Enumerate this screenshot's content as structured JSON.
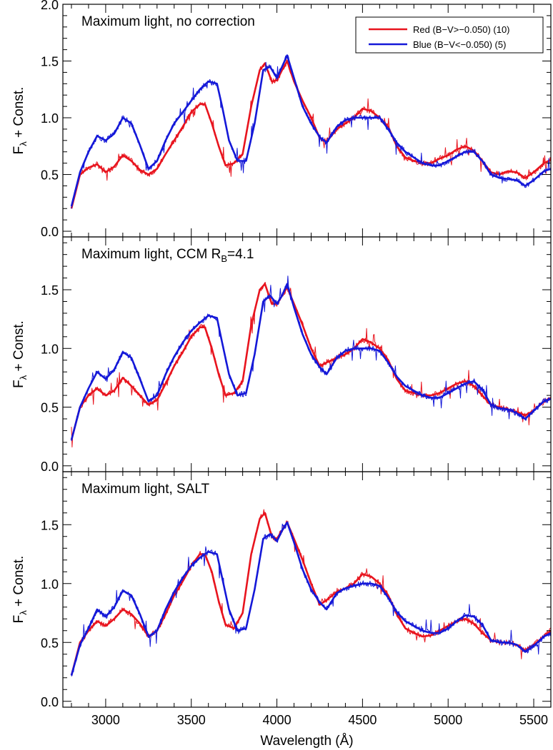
{
  "chart_data": [
    {
      "type": "line",
      "title": "Maximum light, no correction",
      "title_sub": "",
      "title_after": "",
      "ylabel": "Fλ + Const.",
      "ylabel_main": "F",
      "ylabel_sub": "λ",
      "ylabel_rest": " + Const.",
      "xlabel": "",
      "xlim": [
        2750,
        5600
      ],
      "ylim": [
        -0.05,
        2.0
      ],
      "yticks": [
        "0.0",
        "0.5",
        "1.0",
        "1.5",
        "2.0"
      ],
      "ytick_values": [
        0.0,
        0.5,
        1.0,
        1.5,
        2.0
      ],
      "xticks": [],
      "legend": {
        "position": "top-right",
        "entries": [
          {
            "label": "Red (B−V>−0.050) (10)",
            "color": "#e8141e"
          },
          {
            "label": "Blue (B−V<−0.050) (5)",
            "color": "#1418d8"
          }
        ]
      },
      "series": [
        {
          "name": "Red (B−V>−0.050) (10)",
          "color": "#e8141e",
          "x": [
            2800,
            2850,
            2900,
            2950,
            3000,
            3050,
            3100,
            3150,
            3200,
            3250,
            3300,
            3350,
            3400,
            3450,
            3500,
            3550,
            3580,
            3620,
            3660,
            3700,
            3750,
            3800,
            3850,
            3900,
            3930,
            3970,
            4000,
            4030,
            4060,
            4100,
            4150,
            4200,
            4250,
            4290,
            4350,
            4400,
            4450,
            4500,
            4550,
            4600,
            4650,
            4700,
            4750,
            4800,
            4850,
            4900,
            4950,
            5000,
            5050,
            5100,
            5150,
            5200,
            5250,
            5300,
            5350,
            5400,
            5450,
            5500,
            5560,
            5600
          ],
          "y": [
            0.2,
            0.5,
            0.56,
            0.59,
            0.52,
            0.57,
            0.67,
            0.62,
            0.54,
            0.5,
            0.55,
            0.68,
            0.8,
            0.92,
            1.05,
            1.12,
            1.12,
            0.95,
            0.75,
            0.58,
            0.6,
            0.68,
            1.1,
            1.42,
            1.48,
            1.32,
            1.33,
            1.42,
            1.5,
            1.32,
            1.15,
            1.0,
            0.82,
            0.79,
            0.9,
            0.95,
            1.0,
            1.08,
            1.06,
            1.0,
            0.92,
            0.75,
            0.65,
            0.62,
            0.6,
            0.6,
            0.64,
            0.67,
            0.72,
            0.75,
            0.71,
            0.62,
            0.52,
            0.5,
            0.53,
            0.52,
            0.47,
            0.52,
            0.6,
            0.63
          ]
        },
        {
          "name": "Blue (B−V<−0.050) (5)",
          "color": "#1418d8",
          "x": [
            2800,
            2850,
            2900,
            2950,
            3000,
            3050,
            3100,
            3150,
            3200,
            3250,
            3300,
            3350,
            3400,
            3450,
            3500,
            3550,
            3600,
            3650,
            3680,
            3720,
            3770,
            3820,
            3870,
            3920,
            3960,
            4000,
            4030,
            4060,
            4100,
            4150,
            4200,
            4250,
            4290,
            4350,
            4400,
            4450,
            4500,
            4550,
            4600,
            4650,
            4700,
            4750,
            4800,
            4850,
            4900,
            4950,
            5000,
            5050,
            5100,
            5150,
            5200,
            5250,
            5300,
            5350,
            5400,
            5450,
            5500,
            5560,
            5600
          ],
          "y": [
            0.22,
            0.52,
            0.7,
            0.84,
            0.8,
            0.86,
            1.0,
            0.95,
            0.76,
            0.55,
            0.62,
            0.8,
            0.95,
            1.05,
            1.15,
            1.25,
            1.32,
            1.3,
            1.1,
            0.8,
            0.62,
            0.62,
            0.95,
            1.42,
            1.45,
            1.35,
            1.45,
            1.55,
            1.35,
            1.1,
            0.95,
            0.83,
            0.78,
            0.92,
            0.98,
            1.0,
            1.0,
            1.0,
            1.0,
            0.9,
            0.78,
            0.7,
            0.65,
            0.6,
            0.58,
            0.58,
            0.62,
            0.66,
            0.7,
            0.7,
            0.62,
            0.5,
            0.47,
            0.46,
            0.45,
            0.4,
            0.45,
            0.53,
            0.55
          ]
        }
      ]
    },
    {
      "type": "line",
      "title": "Maximum light, CCM R",
      "title_sub": "B",
      "title_after": "=4.1",
      "ylabel": "Fλ + Const.",
      "ylabel_main": "F",
      "ylabel_sub": "λ",
      "ylabel_rest": " + Const.",
      "xlabel": "",
      "xlim": [
        2750,
        5600
      ],
      "ylim": [
        -0.05,
        1.95
      ],
      "yticks": [
        "0.0",
        "0.5",
        "1.0",
        "1.5"
      ],
      "ytick_values": [
        0.0,
        0.5,
        1.0,
        1.5
      ],
      "xticks": [],
      "series": [
        {
          "name": "Red (B−V>−0.050) (10)",
          "color": "#e8141e",
          "x": [
            2800,
            2850,
            2900,
            2950,
            3000,
            3050,
            3100,
            3150,
            3200,
            3250,
            3300,
            3350,
            3400,
            3450,
            3500,
            3550,
            3580,
            3620,
            3660,
            3700,
            3750,
            3800,
            3850,
            3900,
            3930,
            3970,
            4000,
            4030,
            4060,
            4100,
            4150,
            4200,
            4250,
            4290,
            4350,
            4400,
            4450,
            4500,
            4550,
            4600,
            4650,
            4700,
            4750,
            4800,
            4850,
            4900,
            4950,
            5000,
            5050,
            5100,
            5150,
            5200,
            5250,
            5300,
            5350,
            5400,
            5450,
            5500,
            5560,
            5600
          ],
          "y": [
            0.22,
            0.5,
            0.6,
            0.66,
            0.6,
            0.64,
            0.75,
            0.68,
            0.6,
            0.52,
            0.56,
            0.7,
            0.85,
            0.97,
            1.1,
            1.18,
            1.18,
            1.0,
            0.78,
            0.6,
            0.62,
            0.72,
            1.2,
            1.5,
            1.55,
            1.38,
            1.38,
            1.45,
            1.52,
            1.38,
            1.2,
            1.0,
            0.85,
            0.88,
            0.92,
            0.95,
            1.0,
            1.08,
            1.05,
            1.0,
            0.9,
            0.74,
            0.64,
            0.62,
            0.6,
            0.6,
            0.62,
            0.66,
            0.7,
            0.72,
            0.68,
            0.6,
            0.52,
            0.5,
            0.48,
            0.46,
            0.43,
            0.47,
            0.55,
            0.58
          ]
        },
        {
          "name": "Blue (B−V<−0.050) (5)",
          "color": "#1418d8",
          "x": [
            2800,
            2850,
            2900,
            2950,
            3000,
            3050,
            3100,
            3150,
            3200,
            3250,
            3300,
            3350,
            3400,
            3450,
            3500,
            3550,
            3600,
            3650,
            3680,
            3720,
            3770,
            3820,
            3870,
            3920,
            3960,
            4000,
            4030,
            4060,
            4100,
            4150,
            4200,
            4250,
            4290,
            4350,
            4400,
            4450,
            4500,
            4550,
            4600,
            4650,
            4700,
            4750,
            4800,
            4850,
            4900,
            4950,
            5000,
            5050,
            5100,
            5150,
            5200,
            5250,
            5300,
            5350,
            5400,
            5450,
            5500,
            5560,
            5600
          ],
          "y": [
            0.22,
            0.5,
            0.66,
            0.8,
            0.74,
            0.82,
            0.97,
            0.92,
            0.74,
            0.55,
            0.6,
            0.78,
            0.93,
            1.05,
            1.15,
            1.22,
            1.28,
            1.26,
            1.05,
            0.78,
            0.6,
            0.62,
            0.95,
            1.4,
            1.45,
            1.38,
            1.45,
            1.55,
            1.35,
            1.12,
            0.95,
            0.84,
            0.78,
            0.92,
            0.98,
            1.0,
            1.0,
            1.0,
            0.98,
            0.88,
            0.76,
            0.68,
            0.64,
            0.6,
            0.58,
            0.58,
            0.62,
            0.66,
            0.7,
            0.72,
            0.65,
            0.52,
            0.49,
            0.48,
            0.45,
            0.4,
            0.47,
            0.55,
            0.57
          ]
        }
      ]
    },
    {
      "type": "line",
      "title": "Maximum light, SALT",
      "title_sub": "",
      "title_after": "",
      "ylabel": "Fλ + Const.",
      "ylabel_main": "F",
      "ylabel_sub": "λ",
      "ylabel_rest": " + Const.",
      "xlabel": "Wavelength (Å)",
      "xlim": [
        2750,
        5600
      ],
      "ylim": [
        -0.05,
        1.95
      ],
      "yticks": [
        "0.0",
        "0.5",
        "1.0",
        "1.5"
      ],
      "ytick_values": [
        0.0,
        0.5,
        1.0,
        1.5
      ],
      "xticks": [
        "3000",
        "3500",
        "4000",
        "4500",
        "5000",
        "5500"
      ],
      "xtick_values": [
        3000,
        3500,
        4000,
        4500,
        5000,
        5500
      ],
      "series": [
        {
          "name": "Red (B−V>−0.050) (10)",
          "color": "#e8141e",
          "x": [
            2800,
            2850,
            2900,
            2950,
            3000,
            3050,
            3100,
            3150,
            3200,
            3250,
            3300,
            3350,
            3400,
            3450,
            3500,
            3550,
            3580,
            3620,
            3660,
            3700,
            3750,
            3800,
            3850,
            3900,
            3930,
            3970,
            4000,
            4030,
            4060,
            4100,
            4150,
            4200,
            4250,
            4290,
            4350,
            4400,
            4450,
            4500,
            4550,
            4600,
            4650,
            4700,
            4750,
            4800,
            4850,
            4900,
            4950,
            5000,
            5050,
            5100,
            5150,
            5200,
            5250,
            5300,
            5350,
            5400,
            5450,
            5500,
            5560,
            5600
          ],
          "y": [
            0.22,
            0.5,
            0.6,
            0.68,
            0.64,
            0.7,
            0.78,
            0.74,
            0.66,
            0.55,
            0.6,
            0.74,
            0.9,
            1.02,
            1.15,
            1.25,
            1.25,
            1.1,
            0.85,
            0.65,
            0.62,
            0.75,
            1.25,
            1.55,
            1.6,
            1.4,
            1.38,
            1.45,
            1.52,
            1.38,
            1.2,
            1.0,
            0.82,
            0.86,
            0.93,
            0.96,
            1.0,
            1.08,
            1.06,
            1.0,
            0.9,
            0.74,
            0.62,
            0.58,
            0.55,
            0.56,
            0.6,
            0.64,
            0.68,
            0.7,
            0.66,
            0.58,
            0.52,
            0.5,
            0.5,
            0.48,
            0.43,
            0.48,
            0.55,
            0.6
          ]
        },
        {
          "name": "Blue (B−V<−0.050) (5)",
          "color": "#1418d8",
          "x": [
            2800,
            2850,
            2900,
            2950,
            3000,
            3050,
            3100,
            3150,
            3200,
            3250,
            3300,
            3350,
            3400,
            3450,
            3500,
            3550,
            3600,
            3650,
            3680,
            3720,
            3770,
            3820,
            3870,
            3920,
            3960,
            4000,
            4030,
            4060,
            4100,
            4150,
            4200,
            4250,
            4290,
            4350,
            4400,
            4450,
            4500,
            4550,
            4600,
            4650,
            4700,
            4750,
            4800,
            4850,
            4900,
            4950,
            5000,
            5050,
            5100,
            5150,
            5200,
            5250,
            5300,
            5350,
            5400,
            5450,
            5500,
            5560,
            5600
          ],
          "y": [
            0.22,
            0.48,
            0.62,
            0.78,
            0.72,
            0.8,
            0.94,
            0.9,
            0.74,
            0.55,
            0.6,
            0.78,
            0.93,
            1.05,
            1.15,
            1.22,
            1.27,
            1.25,
            1.05,
            0.78,
            0.6,
            0.62,
            0.95,
            1.38,
            1.42,
            1.36,
            1.45,
            1.52,
            1.35,
            1.12,
            0.95,
            0.84,
            0.78,
            0.92,
            0.96,
            0.98,
            1.0,
            1.0,
            0.98,
            0.88,
            0.76,
            0.68,
            0.64,
            0.6,
            0.58,
            0.58,
            0.62,
            0.68,
            0.73,
            0.72,
            0.65,
            0.52,
            0.5,
            0.5,
            0.48,
            0.42,
            0.47,
            0.55,
            0.58
          ]
        }
      ]
    }
  ]
}
